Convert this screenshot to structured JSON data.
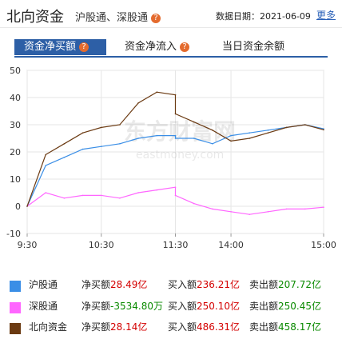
{
  "header": {
    "title": "北向资金",
    "subtitle": "沪股通、深股通",
    "date_label": "数据日期：",
    "date": "2021-06-09",
    "more": "更多"
  },
  "tabs": [
    {
      "label": "资金净买额",
      "active": true
    },
    {
      "label": "资金净流入",
      "active": false
    },
    {
      "label": "当日资金余额",
      "active": false
    }
  ],
  "watermark": {
    "cn": "东方财富网",
    "en": "eastmoney.com"
  },
  "colors": {
    "hgt": "#3a8ee6",
    "sgt": "#ff66ff",
    "north": "#6b3a12",
    "accent": "#2d5fa6",
    "red": "#d40000",
    "green": "#0a8a00"
  },
  "legend": [
    {
      "name": "沪股通",
      "color": "#3a8ee6",
      "net_label": "净买额",
      "net": "28.49亿",
      "buy_label": "买入额",
      "buy": "236.21亿",
      "sell_label": "卖出额",
      "sell": "207.72亿"
    },
    {
      "name": "深股通",
      "color": "#ff66ff",
      "net_label": "净买额",
      "net": "-3534.80万",
      "buy_label": "买入额",
      "buy": "250.10亿",
      "sell_label": "卖出额",
      "sell": "250.45亿"
    },
    {
      "name": "北向资金",
      "color": "#6b3a12",
      "net_label": "净买额",
      "net": "28.14亿",
      "buy_label": "买入额",
      "buy": "486.31亿",
      "sell_label": "卖出额",
      "sell": "458.17亿"
    }
  ],
  "chart_data": {
    "type": "line",
    "x_ticks": [
      "9:30",
      "10:30",
      "11:30",
      "14:00",
      "15:00"
    ],
    "y_ticks": [
      50,
      40,
      30,
      20,
      10,
      0,
      -10
    ],
    "ylim": [
      -10,
      50
    ],
    "grid": true,
    "series": [
      {
        "name": "沪股通",
        "color": "#3a8ee6",
        "x": [
          "9:30",
          "9:45",
          "10:00",
          "10:15",
          "10:30",
          "10:45",
          "11:00",
          "11:15",
          "11:30",
          "13:00",
          "13:15",
          "13:30",
          "13:45",
          "14:00",
          "14:15",
          "14:30",
          "14:45",
          "15:00"
        ],
        "values": [
          0,
          15,
          18,
          21,
          22,
          23,
          25,
          26,
          26,
          25,
          25,
          23,
          26,
          27,
          28,
          29,
          30,
          28.5
        ]
      },
      {
        "name": "深股通",
        "color": "#ff66ff",
        "x": [
          "9:30",
          "9:45",
          "10:00",
          "10:15",
          "10:30",
          "10:45",
          "11:00",
          "11:15",
          "11:30",
          "13:00",
          "13:15",
          "13:30",
          "13:45",
          "14:00",
          "14:15",
          "14:30",
          "14:45",
          "15:00"
        ],
        "values": [
          0,
          5,
          3,
          4,
          4,
          3,
          5,
          6,
          7,
          4,
          1,
          -1,
          -2,
          -3,
          -2,
          -1,
          -1,
          -0.35
        ]
      },
      {
        "name": "北向资金",
        "color": "#6b3a12",
        "x": [
          "9:30",
          "9:45",
          "10:00",
          "10:15",
          "10:30",
          "10:45",
          "11:00",
          "11:15",
          "11:30",
          "13:00",
          "13:15",
          "13:30",
          "13:45",
          "14:00",
          "14:15",
          "14:30",
          "14:45",
          "15:00"
        ],
        "values": [
          0,
          19,
          23,
          27,
          29,
          30,
          38,
          42,
          41,
          34,
          31,
          28,
          24,
          25,
          27,
          29,
          30,
          28.14
        ]
      }
    ]
  }
}
